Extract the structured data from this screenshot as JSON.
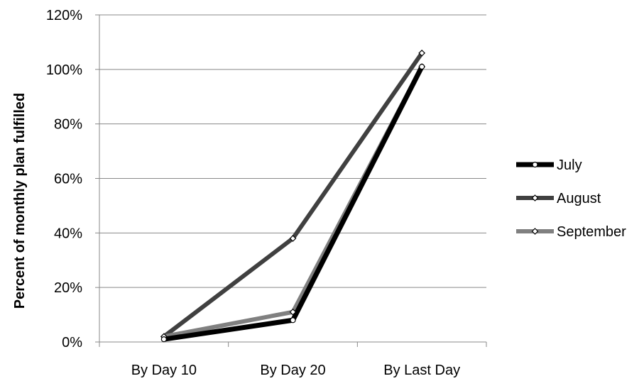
{
  "chart_data": {
    "type": "line",
    "title": "",
    "xlabel": "",
    "ylabel": "Percent of monthly plan fulfilled",
    "categories": [
      "By Day 10",
      "By Day 20",
      "By Last Day"
    ],
    "ylim": [
      0,
      120
    ],
    "yticks": [
      0,
      20,
      40,
      60,
      80,
      100,
      120
    ],
    "ytick_labels": [
      "0%",
      "20%",
      "40%",
      "60%",
      "80%",
      "100%",
      "120%"
    ],
    "grid": true,
    "legend_position": "right",
    "series": [
      {
        "name": "July",
        "values": [
          1,
          8,
          101
        ],
        "color": "#000000",
        "marker": "circle"
      },
      {
        "name": "August",
        "values": [
          2,
          38,
          106
        ],
        "color": "#404040",
        "marker": "diamond"
      },
      {
        "name": "September",
        "values": [
          2,
          11,
          101
        ],
        "color": "#808080",
        "marker": "diamond"
      }
    ]
  }
}
